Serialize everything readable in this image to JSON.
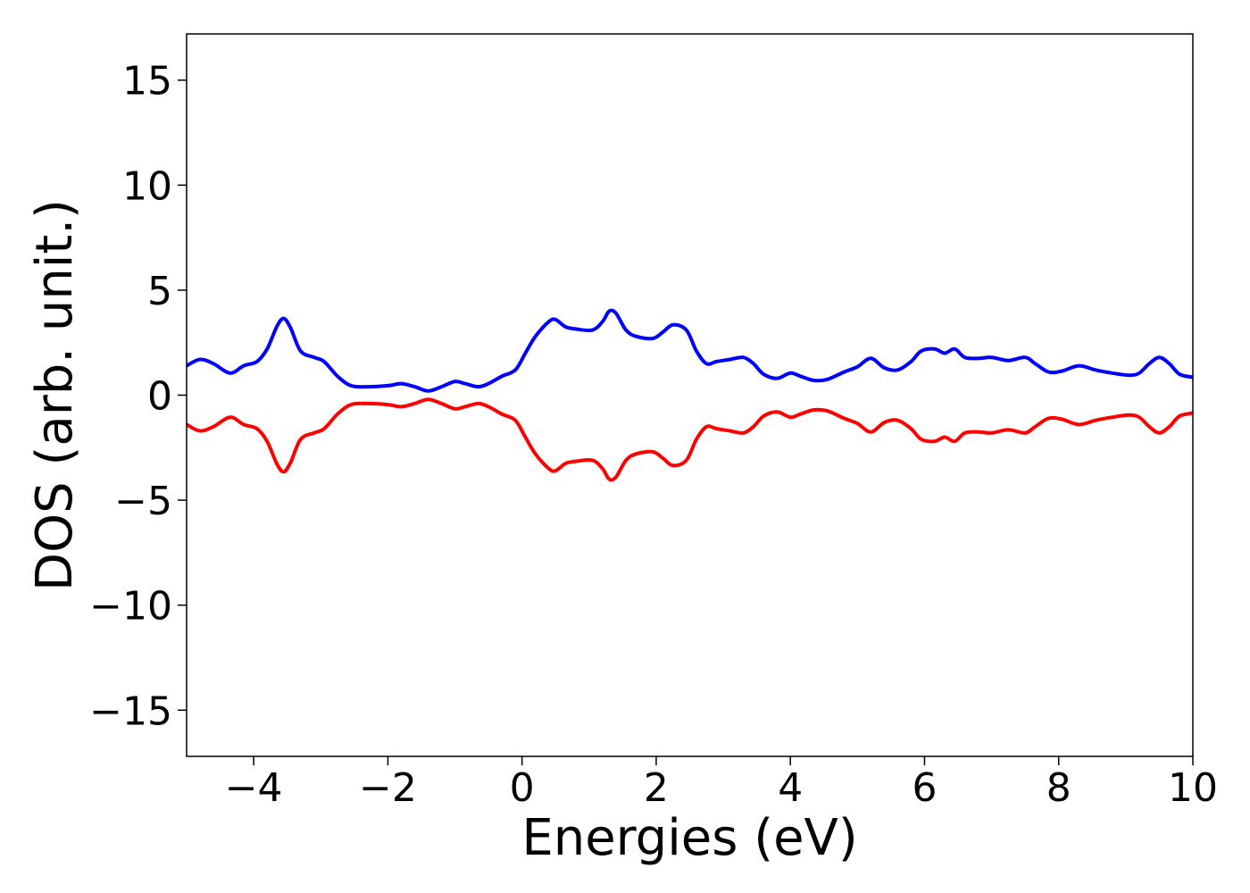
{
  "chart_data": {
    "type": "line",
    "title": "",
    "xlabel": "Energies (eV)",
    "ylabel": "DOS (arb. unit.)",
    "xlim": [
      -5,
      10
    ],
    "ylim": [
      -17.2,
      17.2
    ],
    "x_ticks": [
      -4,
      -2,
      0,
      2,
      4,
      6,
      8,
      10
    ],
    "y_ticks": [
      -15,
      -10,
      -5,
      0,
      5,
      10,
      15
    ],
    "x_tick_labels": [
      "−4",
      "−2",
      "0",
      "2",
      "4",
      "6",
      "8",
      "10"
    ],
    "y_tick_labels": [
      "−15",
      "−10",
      "−5",
      "0",
      "5",
      "10",
      "15"
    ],
    "grid": false,
    "legend": "none",
    "series": [
      {
        "color": "#0000ff",
        "points": [
          [
            -5.0,
            1.4
          ],
          [
            -4.8,
            1.7
          ],
          [
            -4.6,
            1.5
          ],
          [
            -4.35,
            1.05
          ],
          [
            -4.15,
            1.4
          ],
          [
            -3.95,
            1.6
          ],
          [
            -3.8,
            2.2
          ],
          [
            -3.65,
            3.3
          ],
          [
            -3.55,
            3.65
          ],
          [
            -3.45,
            3.2
          ],
          [
            -3.3,
            2.1
          ],
          [
            -3.1,
            1.8
          ],
          [
            -2.95,
            1.6
          ],
          [
            -2.75,
            0.9
          ],
          [
            -2.55,
            0.45
          ],
          [
            -2.3,
            0.4
          ],
          [
            -2.0,
            0.45
          ],
          [
            -1.8,
            0.55
          ],
          [
            -1.6,
            0.4
          ],
          [
            -1.4,
            0.2
          ],
          [
            -1.2,
            0.4
          ],
          [
            -1.0,
            0.65
          ],
          [
            -0.85,
            0.55
          ],
          [
            -0.65,
            0.4
          ],
          [
            -0.5,
            0.55
          ],
          [
            -0.3,
            0.9
          ],
          [
            -0.1,
            1.2
          ],
          [
            0.05,
            2.0
          ],
          [
            0.2,
            2.8
          ],
          [
            0.4,
            3.5
          ],
          [
            0.5,
            3.6
          ],
          [
            0.65,
            3.25
          ],
          [
            0.8,
            3.15
          ],
          [
            1.05,
            3.1
          ],
          [
            1.2,
            3.5
          ],
          [
            1.3,
            4.0
          ],
          [
            1.4,
            3.9
          ],
          [
            1.55,
            3.1
          ],
          [
            1.7,
            2.8
          ],
          [
            1.95,
            2.7
          ],
          [
            2.1,
            3.0
          ],
          [
            2.25,
            3.35
          ],
          [
            2.45,
            3.1
          ],
          [
            2.6,
            2.1
          ],
          [
            2.75,
            1.5
          ],
          [
            2.9,
            1.6
          ],
          [
            3.1,
            1.7
          ],
          [
            3.3,
            1.8
          ],
          [
            3.45,
            1.5
          ],
          [
            3.6,
            1.0
          ],
          [
            3.8,
            0.8
          ],
          [
            4.0,
            1.05
          ],
          [
            4.15,
            0.9
          ],
          [
            4.35,
            0.7
          ],
          [
            4.55,
            0.75
          ],
          [
            4.8,
            1.1
          ],
          [
            5.0,
            1.35
          ],
          [
            5.2,
            1.75
          ],
          [
            5.4,
            1.3
          ],
          [
            5.6,
            1.2
          ],
          [
            5.8,
            1.6
          ],
          [
            5.95,
            2.1
          ],
          [
            6.15,
            2.2
          ],
          [
            6.3,
            2.0
          ],
          [
            6.45,
            2.2
          ],
          [
            6.6,
            1.8
          ],
          [
            6.8,
            1.75
          ],
          [
            7.0,
            1.8
          ],
          [
            7.25,
            1.65
          ],
          [
            7.5,
            1.8
          ],
          [
            7.65,
            1.5
          ],
          [
            7.85,
            1.1
          ],
          [
            8.05,
            1.15
          ],
          [
            8.3,
            1.4
          ],
          [
            8.55,
            1.2
          ],
          [
            8.8,
            1.05
          ],
          [
            9.05,
            0.95
          ],
          [
            9.2,
            1.05
          ],
          [
            9.35,
            1.5
          ],
          [
            9.5,
            1.8
          ],
          [
            9.65,
            1.5
          ],
          [
            9.8,
            1.0
          ],
          [
            10.0,
            0.85
          ]
        ]
      },
      {
        "color": "#ff0000",
        "points": [
          [
            -5.0,
            -1.4
          ],
          [
            -4.8,
            -1.7
          ],
          [
            -4.6,
            -1.5
          ],
          [
            -4.35,
            -1.05
          ],
          [
            -4.15,
            -1.4
          ],
          [
            -3.95,
            -1.6
          ],
          [
            -3.8,
            -2.2
          ],
          [
            -3.65,
            -3.3
          ],
          [
            -3.55,
            -3.65
          ],
          [
            -3.45,
            -3.2
          ],
          [
            -3.3,
            -2.1
          ],
          [
            -3.1,
            -1.8
          ],
          [
            -2.95,
            -1.6
          ],
          [
            -2.75,
            -0.9
          ],
          [
            -2.55,
            -0.45
          ],
          [
            -2.3,
            -0.4
          ],
          [
            -2.0,
            -0.45
          ],
          [
            -1.8,
            -0.55
          ],
          [
            -1.6,
            -0.4
          ],
          [
            -1.4,
            -0.2
          ],
          [
            -1.2,
            -0.4
          ],
          [
            -1.0,
            -0.65
          ],
          [
            -0.85,
            -0.55
          ],
          [
            -0.65,
            -0.4
          ],
          [
            -0.5,
            -0.55
          ],
          [
            -0.3,
            -0.9
          ],
          [
            -0.1,
            -1.2
          ],
          [
            0.05,
            -2.0
          ],
          [
            0.2,
            -2.8
          ],
          [
            0.4,
            -3.5
          ],
          [
            0.5,
            -3.6
          ],
          [
            0.65,
            -3.25
          ],
          [
            0.8,
            -3.15
          ],
          [
            1.05,
            -3.1
          ],
          [
            1.2,
            -3.5
          ],
          [
            1.3,
            -4.0
          ],
          [
            1.4,
            -3.9
          ],
          [
            1.55,
            -3.1
          ],
          [
            1.7,
            -2.8
          ],
          [
            1.95,
            -2.7
          ],
          [
            2.1,
            -3.0
          ],
          [
            2.25,
            -3.35
          ],
          [
            2.45,
            -3.1
          ],
          [
            2.6,
            -2.1
          ],
          [
            2.75,
            -1.5
          ],
          [
            2.9,
            -1.6
          ],
          [
            3.1,
            -1.7
          ],
          [
            3.3,
            -1.8
          ],
          [
            3.45,
            -1.5
          ],
          [
            3.6,
            -1.0
          ],
          [
            3.8,
            -0.8
          ],
          [
            4.0,
            -1.05
          ],
          [
            4.15,
            -0.9
          ],
          [
            4.35,
            -0.7
          ],
          [
            4.55,
            -0.75
          ],
          [
            4.8,
            -1.1
          ],
          [
            5.0,
            -1.35
          ],
          [
            5.2,
            -1.75
          ],
          [
            5.4,
            -1.3
          ],
          [
            5.6,
            -1.2
          ],
          [
            5.8,
            -1.6
          ],
          [
            5.95,
            -2.1
          ],
          [
            6.15,
            -2.2
          ],
          [
            6.3,
            -2.0
          ],
          [
            6.45,
            -2.2
          ],
          [
            6.6,
            -1.8
          ],
          [
            6.8,
            -1.75
          ],
          [
            7.0,
            -1.8
          ],
          [
            7.25,
            -1.65
          ],
          [
            7.5,
            -1.8
          ],
          [
            7.65,
            -1.5
          ],
          [
            7.85,
            -1.1
          ],
          [
            8.05,
            -1.15
          ],
          [
            8.3,
            -1.4
          ],
          [
            8.55,
            -1.2
          ],
          [
            8.8,
            -1.05
          ],
          [
            9.05,
            -0.95
          ],
          [
            9.2,
            -1.05
          ],
          [
            9.35,
            -1.5
          ],
          [
            9.5,
            -1.8
          ],
          [
            9.65,
            -1.5
          ],
          [
            9.8,
            -1.0
          ],
          [
            10.0,
            -0.85
          ]
        ]
      }
    ]
  }
}
